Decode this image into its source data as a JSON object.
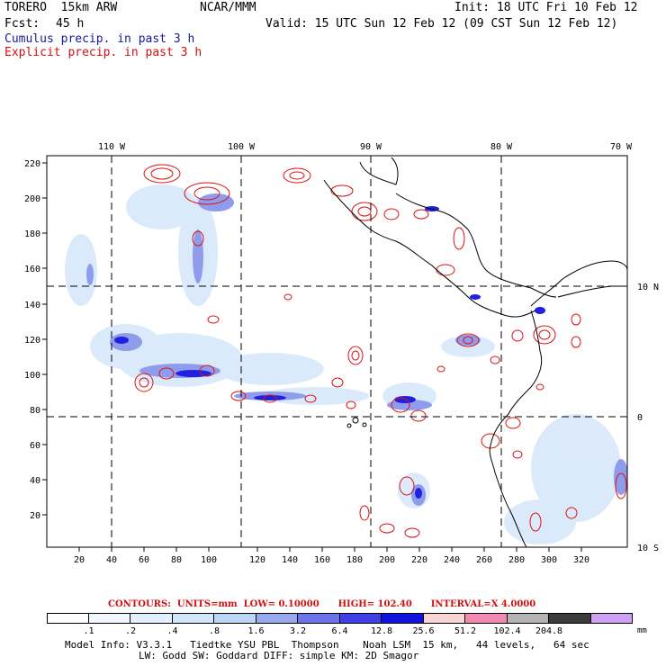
{
  "header": {
    "model": "TORERO  15km ARW",
    "center": "NCAR/MMM",
    "init": "Init: 18 UTC Fri 10 Feb 12",
    "fcst_label": "Fcst:",
    "fcst_value": "45 h",
    "valid": "Valid: 15 UTC Sun 12 Feb 12 (09 CST Sun 12 Feb 12)",
    "cumulus": "Cumulus precip. in past 3 h",
    "explicit": "Explicit precip. in past 3 h"
  },
  "colors": {
    "cumulus_text": "#1a1a9a",
    "explicit_text": "#cc1111",
    "coast": "#000000",
    "contour": "#dd1111"
  },
  "map": {
    "lon_labels": [
      "110 W",
      "100 W",
      "90 W",
      "80 W",
      "70 W"
    ],
    "lat_labels": [
      "10 N",
      "0",
      "10 S"
    ],
    "y_ticks": [
      "220",
      "200",
      "180",
      "160",
      "140",
      "120",
      "100",
      "80",
      "60",
      "40",
      "20"
    ],
    "x_ticks": [
      "20",
      "40",
      "60",
      "80",
      "100",
      "120",
      "140",
      "160",
      "180",
      "200",
      "220",
      "240",
      "260",
      "280",
      "300",
      "320"
    ]
  },
  "contours": {
    "label": "CONTOURS:",
    "units": "UNITS=mm",
    "low": "LOW= 0.10000",
    "high": "HIGH= 102.40",
    "interval": "INTERVAL=X 4.0000"
  },
  "colorbar": {
    "labels": [
      ".1",
      ".2",
      ".4",
      ".8",
      "1.6",
      "3.2",
      "6.4",
      "12.8",
      "25.6",
      "51.2",
      "102.4",
      "204.8"
    ],
    "unit": "mm",
    "colors": [
      "#ffffff",
      "#f2f7ff",
      "#e3effd",
      "#d2e6fb",
      "#bcd6f6",
      "#9aa9ee",
      "#6d73e8",
      "#4040e6",
      "#1212de",
      "#f9d6d6",
      "#f28ab3",
      "#b4b4b4",
      "#3c3c3c",
      "#d0a0f5"
    ]
  },
  "model_info": {
    "line1": "Model Info: V3.3.1   Tiedtke YSU PBL  Thompson    Noah LSM  15 km,   44 levels,   64 sec",
    "line2": "LW: Godd SW: Goddard DIFF: simple KM: 2D Smagor"
  }
}
